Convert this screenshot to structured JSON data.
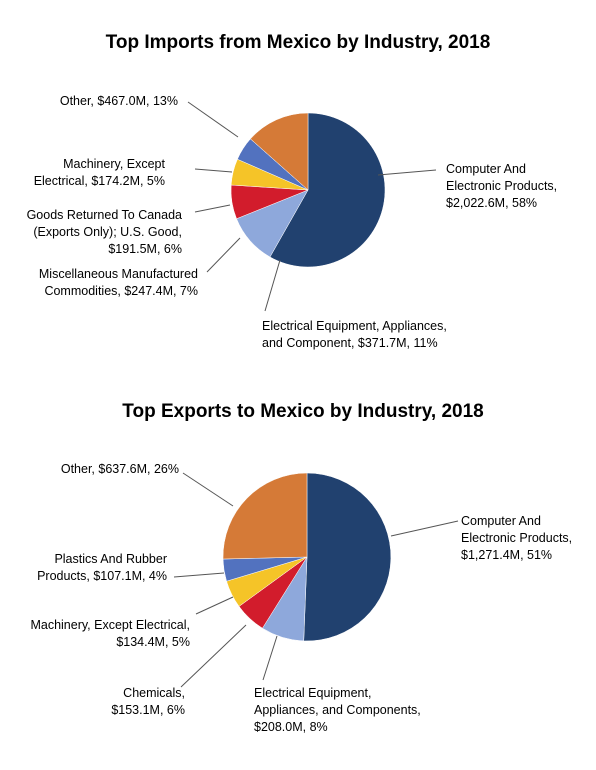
{
  "colors": {
    "computer": "#21416f",
    "electrical": "#8ea8db",
    "misc": "#d21c2c",
    "goods_returned": "#f5c428",
    "machinery": "#5272bf",
    "other": "#d57a37",
    "chemicals": "#d21c2c",
    "plastics": "#5272bf"
  },
  "chart_data": [
    {
      "type": "pie",
      "title": "Top Imports from Mexico by Industry, 2018",
      "slices": [
        {
          "name": "Computer And Electronic Products",
          "value_musd": 2022.6,
          "percent": 58,
          "label_lines": [
            "Computer And",
            "Electronic Products,",
            "$2,022.6M, 58%"
          ],
          "color": "computer"
        },
        {
          "name": "Electrical Equipment, Appliances, and Component",
          "value_musd": 371.7,
          "percent": 11,
          "label_lines": [
            "Electrical Equipment, Appliances,",
            "and Component, $371.7M, 11%"
          ],
          "color": "electrical"
        },
        {
          "name": "Miscellaneous Manufactured Commodities",
          "value_musd": 247.4,
          "percent": 7,
          "label_lines": [
            "Miscellaneous Manufactured",
            "Commodities, $247.4M, 7%"
          ],
          "color": "misc"
        },
        {
          "name": "Goods Returned To Canada (Exports Only); U.S. Good",
          "value_musd": 191.5,
          "percent": 6,
          "label_lines": [
            "Goods Returned To Canada",
            "(Exports Only); U.S. Good,",
            "$191.5M, 6%"
          ],
          "color": "goods_returned"
        },
        {
          "name": "Machinery, Except Electrical",
          "value_musd": 174.2,
          "percent": 5,
          "label_lines": [
            "Machinery, Except",
            "Electrical, $174.2M, 5%"
          ],
          "color": "machinery"
        },
        {
          "name": "Other",
          "value_musd": 467.0,
          "percent": 13,
          "label_lines": [
            "Other, $467.0M, 13%"
          ],
          "color": "other"
        }
      ]
    },
    {
      "type": "pie",
      "title": "Top Exports to Mexico by Industry, 2018",
      "slices": [
        {
          "name": "Computer And Electronic Products",
          "value_musd": 1271.4,
          "percent": 51,
          "label_lines": [
            "Computer And",
            "Electronic Products,",
            "$1,271.4M, 51%"
          ],
          "color": "computer"
        },
        {
          "name": "Electrical Equipment, Appliances, and Components",
          "value_musd": 208.0,
          "percent": 8,
          "label_lines": [
            "Electrical Equipment,",
            "Appliances, and Components,",
            "$208.0M, 8%"
          ],
          "color": "electrical"
        },
        {
          "name": "Chemicals",
          "value_musd": 153.1,
          "percent": 6,
          "label_lines": [
            "Chemicals,",
            "$153.1M, 6%"
          ],
          "color": "chemicals"
        },
        {
          "name": "Machinery, Except Electrical",
          "value_musd": 134.4,
          "percent": 5,
          "label_lines": [
            "Machinery, Except Electrical,",
            "$134.4M, 5%"
          ],
          "color": "goods_returned"
        },
        {
          "name": "Plastics And Rubber Products",
          "value_musd": 107.1,
          "percent": 4,
          "label_lines": [
            "Plastics And Rubber",
            "Products, $107.1M, 4%"
          ],
          "color": "plastics"
        },
        {
          "name": "Other",
          "value_musd": 637.6,
          "percent": 26,
          "label_lines": [
            "Other, $637.6M, 26%"
          ],
          "color": "other"
        }
      ]
    }
  ]
}
